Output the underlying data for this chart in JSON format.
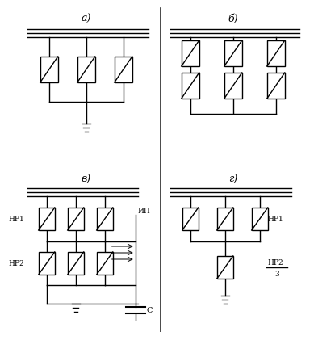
{
  "background": "#ffffff",
  "labels": {
    "a": "а)",
    "b": "б)",
    "c": "в)",
    "d": "г)"
  },
  "texts": {
    "NR1_c": "НР1",
    "NR2_c": "НР2",
    "IP_c": "ИП",
    "C_c": "С",
    "NR1_d": "НР1",
    "NR2_d": "НР2",
    "3_d": "3"
  }
}
